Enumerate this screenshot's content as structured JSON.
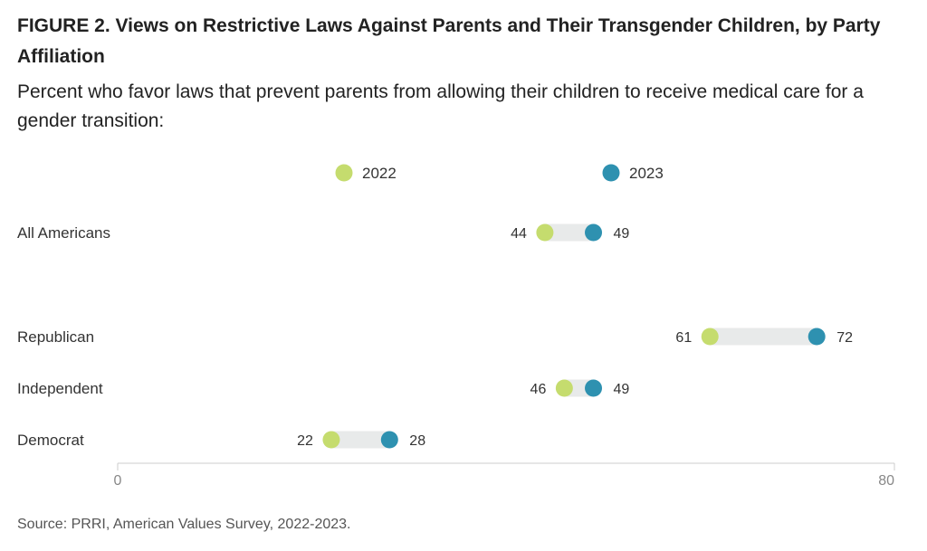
{
  "figure": {
    "title": "FIGURE 2.  Views on Restrictive Laws Against Parents and Their Transgender Children, by Party Affiliation",
    "subtitle": "Percent who favor laws that prevent parents from allowing their children to receive medical care for a gender transition:",
    "source": "Source: PRRI, American Values Survey, 2022-2023."
  },
  "colors": {
    "y2022": "#c5dc6e",
    "y2023": "#2e91b0",
    "connector": "#e8eaea",
    "axis": "#cccccc"
  },
  "chart_data": {
    "type": "dumbbell",
    "title": "FIGURE 2.  Views on Restrictive Laws Against Parents and Their Transgender Children, by Party Affiliation",
    "subtitle": "Percent who favor laws that prevent parents from allowing their children to receive medical care for a gender transition:",
    "categories": [
      "All Americans",
      "Republican",
      "Independent",
      "Democrat"
    ],
    "series": [
      {
        "name": "2022",
        "values": [
          44,
          61,
          46,
          22
        ]
      },
      {
        "name": "2023",
        "values": [
          49,
          72,
          49,
          28
        ]
      }
    ],
    "xlim": [
      0,
      80
    ],
    "xticks": [
      "0",
      "80"
    ],
    "grid": false,
    "legend": "top-center"
  }
}
